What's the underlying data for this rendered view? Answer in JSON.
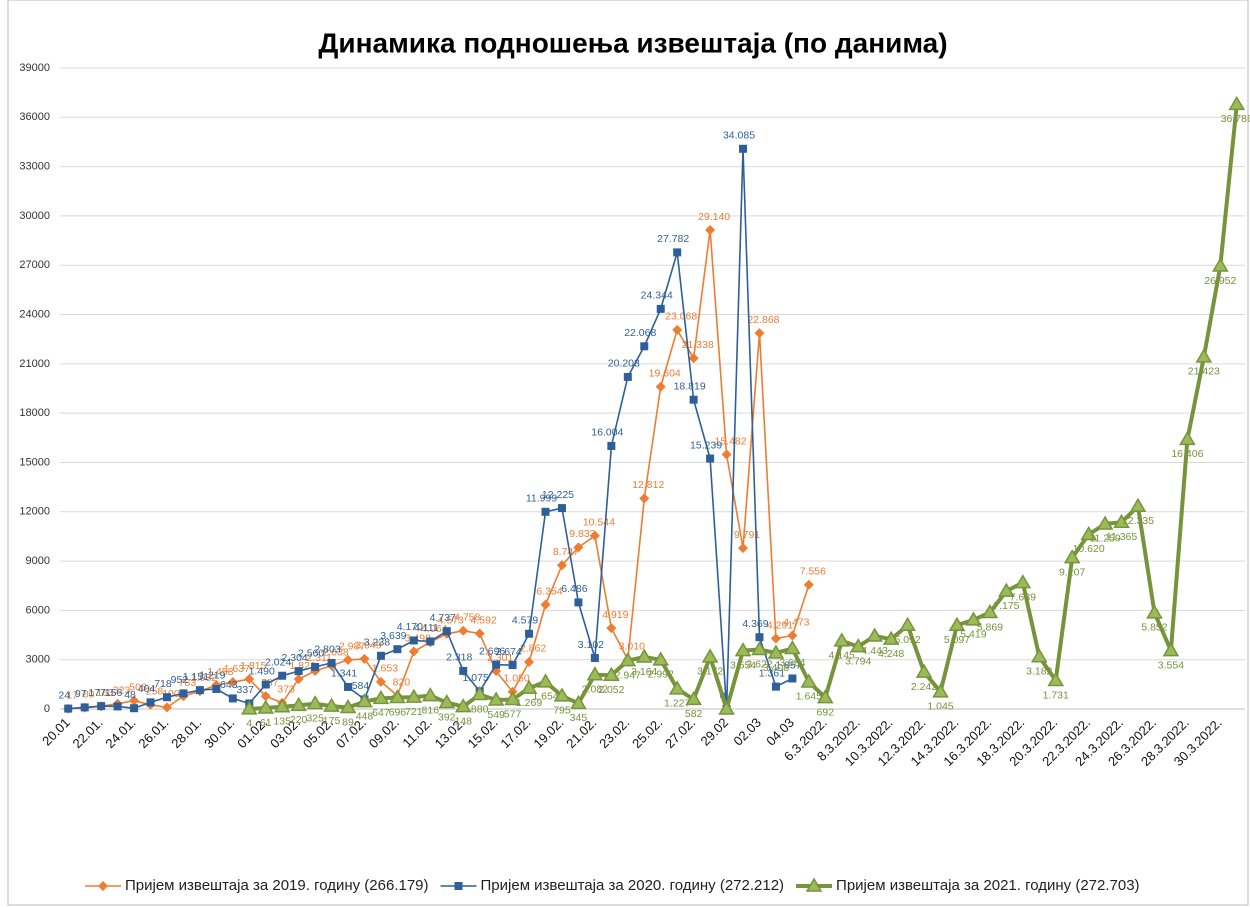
{
  "chart_data": {
    "type": "line",
    "title": "Динамика подношења извештаја (по данима)",
    "categories": [
      "20.01",
      null,
      "22.01.",
      null,
      "24.01.",
      null,
      "26.01.",
      null,
      "28.01.",
      null,
      "30.01.",
      null,
      "01.02.",
      null,
      "03.02.",
      null,
      "05.02.",
      null,
      "07.02.",
      null,
      "09.02.",
      null,
      "11.02.",
      null,
      "13.02.",
      null,
      "15.02.",
      null,
      "17.02.",
      null,
      "19.02.",
      null,
      "21.02.",
      null,
      "23.02.",
      null,
      "25.02.",
      null,
      "27.02.",
      null,
      "29.02",
      null,
      "02.03",
      null,
      "04.03",
      null,
      "6.3.2022.",
      null,
      "8.3.2022.",
      null,
      "10.3.2022.",
      null,
      "12.3.2022.",
      null,
      "14.3.2022.",
      null,
      "16.3.2022.",
      null,
      "18.3.2022.",
      null,
      "20.3.2022.",
      null,
      "22.3.2022.",
      null,
      "24.3.2022.",
      null,
      "26.3.2022.",
      null,
      "28.3.2022.",
      null,
      "30.3.2022.",
      null
    ],
    "ylim": [
      0,
      39000
    ],
    "yticks": [
      0,
      3000,
      6000,
      9000,
      12000,
      15000,
      18000,
      21000,
      24000,
      27000,
      30000,
      33000,
      36000,
      39000
    ],
    "grid": true,
    "legend": "bottom",
    "series": [
      {
        "name": "Пријем извештаја за 2019. годину (266.179)",
        "color": "#ed7d31",
        "marker": "diamond",
        "values": [
          17,
          80,
          163,
          323,
          506,
          258,
          100,
          783,
          1082,
          1458,
          1637,
          1815,
          787,
          373,
          1821,
          2311,
          2638,
          2987,
          3049,
          1653,
          820,
          3498,
          4064,
          4573,
          4758,
          4592,
          2301,
          1050,
          2862,
          6354,
          8747,
          9833,
          10544,
          4919,
          3010,
          12812,
          19604,
          23068,
          21338,
          29140,
          15482,
          9791,
          22868,
          4291,
          4473,
          7556,
          null,
          null,
          null,
          null,
          null,
          null,
          null,
          null,
          null,
          null,
          null,
          null,
          null,
          null,
          null,
          null,
          null,
          null,
          null,
          null,
          null,
          null,
          null,
          null,
          null,
          null
        ],
        "value_labels": [
          "17",
          "80",
          "163",
          "323",
          "506",
          "258",
          "100",
          "783",
          "1.082",
          "1.458",
          "1.637",
          "1.815",
          "787",
          "373",
          "1.821",
          "2.311",
          "2.638",
          "2.987",
          "3.049",
          "1.653",
          "820",
          "3.498",
          "4.064",
          "4.573",
          "4.758",
          "4.592",
          "2.301",
          "1.050",
          "2.862",
          "6.354",
          "8.747",
          "9.833",
          "10.544",
          "4.919",
          "3.010",
          "12.812",
          "19.604",
          "23.068",
          "21.338",
          "29.140",
          "15.482",
          "9.791",
          "22.868",
          "4.291",
          "4.473",
          "7.556",
          null,
          null,
          null,
          null,
          null,
          null,
          null,
          null,
          null,
          null,
          null,
          null,
          null,
          null,
          null,
          null,
          null,
          null,
          null,
          null,
          null,
          null,
          null,
          null,
          null,
          null
        ]
      },
      {
        "name": "Пријем извештаја за 2020. годину (272.212)",
        "color": "#2f5f98",
        "marker": "square",
        "values": [
          24,
          97,
          177,
          156,
          48,
          404,
          718,
          952,
          1151,
          1219,
          643,
          337,
          1490,
          2024,
          2304,
          2560,
          2803,
          1341,
          584,
          3238,
          3639,
          4170,
          4111,
          4737,
          2318,
          1075,
          2696,
          2674,
          4579,
          11999,
          12225,
          6486,
          3102,
          16004,
          20203,
          22068,
          24344,
          27782,
          18819,
          15239,
          0,
          34085,
          4369,
          1361,
          1857,
          null,
          null,
          null,
          null,
          null,
          null,
          null,
          null,
          null,
          null,
          null,
          null,
          null,
          null,
          null,
          null,
          null,
          null,
          null,
          null,
          null,
          null,
          null,
          null,
          null,
          null,
          null
        ],
        "value_labels": [
          "24",
          "97",
          "177",
          "156",
          "48",
          "404",
          "718",
          "952",
          "1.151",
          "1.219",
          "643",
          "337",
          "1.490",
          "2.024",
          "2.304",
          "2.560",
          "2.803",
          "1.341",
          "584",
          "3.238",
          "3.639",
          "4.170",
          "4.111",
          "4.737",
          "2.318",
          "1.075",
          "2.696",
          "2.674",
          "4.579",
          "11.999",
          "12.225",
          "6.486",
          "3.102",
          "16.004",
          "20.203",
          "22.068",
          "24.344",
          "27.782",
          "18.819",
          "15.239",
          "0",
          "34.085",
          "4.369",
          "1.361",
          "1.857",
          null,
          null,
          null,
          null,
          null,
          null,
          null,
          null,
          null,
          null,
          null,
          null,
          null,
          null,
          null,
          null,
          null,
          null,
          null,
          null,
          null,
          null,
          null,
          null,
          null,
          null,
          null
        ]
      },
      {
        "name": "Пријем извештаја за 2021. годину (272.703)",
        "color": "#77933c",
        "marker": "triangle",
        "values": [
          null,
          null,
          null,
          null,
          null,
          null,
          null,
          null,
          null,
          null,
          null,
          4,
          61,
          135,
          220,
          325,
          175,
          89,
          448,
          647,
          696,
          721,
          816,
          392,
          148,
          880,
          549,
          577,
          1269,
          1654,
          795,
          345,
          2082,
          2052,
          2947,
          3164,
          2992,
          1227,
          582,
          3172,
          0,
          3554,
          3622,
          3408,
          3684,
          1645,
          692,
          4145,
          3794,
          4443,
          4248,
          5092,
          2242,
          1045,
          5097,
          5419,
          5869,
          7175,
          7689,
          3182,
          1731,
          9207,
          10620,
          11259,
          11365,
          12335,
          5852,
          3554,
          16406,
          21423,
          26952,
          36786
        ],
        "value_labels": [
          null,
          null,
          null,
          null,
          null,
          null,
          null,
          null,
          null,
          null,
          null,
          "4",
          "61",
          "135",
          "220",
          "325",
          "175",
          "89",
          "448",
          "647",
          "696",
          "721",
          "816",
          "392",
          "148",
          "880",
          "549",
          "577",
          "1.269",
          "1.654",
          "795",
          "345",
          "2.082",
          "2.052",
          "2.947",
          "3.164",
          "2.992",
          "1.227",
          "582",
          "3.172",
          null,
          "3.554",
          "3.622",
          "3.408",
          "3.684",
          "1.645",
          "692",
          "4.145",
          "3.794",
          "4.443",
          "4.248",
          "5.092",
          "2.242",
          "1.045",
          "5.097",
          "5.419",
          "5.869",
          "7.175",
          "7.689",
          "3.182",
          "1.731",
          "9.207",
          "10.620",
          "11.259",
          "11.365",
          "12.335",
          "5.852",
          "3.554",
          "16.406",
          "21.423",
          "26.952",
          "36.786"
        ]
      }
    ]
  }
}
